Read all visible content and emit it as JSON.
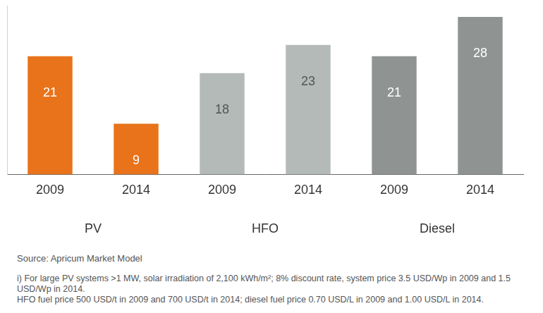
{
  "chart_data": {
    "type": "bar",
    "categories": [
      "2009",
      "2014",
      "2009",
      "2014",
      "2009",
      "2014"
    ],
    "values": [
      21,
      9,
      18,
      23,
      21,
      28
    ],
    "colors": [
      "#e8731a",
      "#e8731a",
      "#b3bab8",
      "#b3bab8",
      "#8f9492",
      "#8f9492"
    ],
    "groups": [
      "PV",
      "HFO",
      "Diesel"
    ],
    "ylim": [
      0,
      30
    ],
    "grid": false,
    "data_labels": true,
    "tick_labels": "x",
    "source": "Source: Apricum Market Model",
    "notes": [
      "i) For large PV systems >1 MW, solar irradiation  of 2,100 kWh/m²; 8% discount rate, system price 3.5 USD/Wp in 2009 and 1.5 USD/Wp in 2014.",
      "HFO fuel price 500 USD/t in 2009 and 700 USD/t in 2014; diesel fuel price 0.70 USD/L in 2009 and 1.00 USD/L in 2014."
    ]
  }
}
